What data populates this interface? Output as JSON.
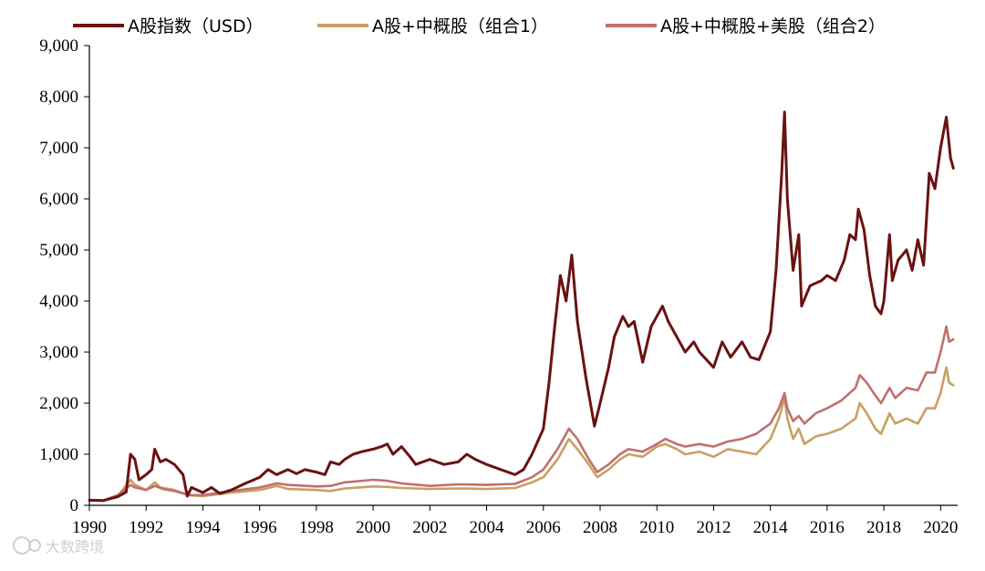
{
  "chart_data": {
    "type": "line",
    "title": "",
    "xlabel": "",
    "ylabel": "",
    "xlim": [
      1990,
      2020.6
    ],
    "ylim": [
      0,
      9000
    ],
    "x_ticks": [
      1990,
      1992,
      1994,
      1996,
      1998,
      2000,
      2002,
      2004,
      2006,
      2008,
      2010,
      2012,
      2014,
      2016,
      2018,
      2020
    ],
    "y_ticks": [
      0,
      1000,
      2000,
      3000,
      4000,
      5000,
      6000,
      7000,
      8000,
      9000
    ],
    "y_tick_labels": [
      "0",
      "1,000",
      "2,000",
      "3,000",
      "4,000",
      "5,000",
      "6,000",
      "7,000",
      "8,000",
      "9,000"
    ],
    "grid": false,
    "legend_position": "top",
    "series": [
      {
        "name": "A股指数（USD）",
        "color": "#6b1212",
        "points": [
          [
            1990,
            100
          ],
          [
            1990.5,
            95
          ],
          [
            1991,
            170
          ],
          [
            1991.3,
            260
          ],
          [
            1991.45,
            1000
          ],
          [
            1991.6,
            900
          ],
          [
            1991.75,
            500
          ],
          [
            1992,
            600
          ],
          [
            1992.2,
            700
          ],
          [
            1992.3,
            1100
          ],
          [
            1992.5,
            850
          ],
          [
            1992.7,
            900
          ],
          [
            1993.0,
            800
          ],
          [
            1993.3,
            600
          ],
          [
            1993.45,
            180
          ],
          [
            1993.6,
            350
          ],
          [
            1993.8,
            300
          ],
          [
            1994,
            250
          ],
          [
            1994.3,
            350
          ],
          [
            1994.6,
            230
          ],
          [
            1995,
            300
          ],
          [
            1995.5,
            430
          ],
          [
            1995.8,
            500
          ],
          [
            1996,
            550
          ],
          [
            1996.3,
            700
          ],
          [
            1996.6,
            600
          ],
          [
            1997,
            700
          ],
          [
            1997.3,
            620
          ],
          [
            1997.6,
            700
          ],
          [
            1998,
            650
          ],
          [
            1998.3,
            600
          ],
          [
            1998.5,
            850
          ],
          [
            1998.8,
            800
          ],
          [
            1999,
            900
          ],
          [
            1999.3,
            1000
          ],
          [
            1999.6,
            1050
          ],
          [
            2000,
            1100
          ],
          [
            2000.3,
            1150
          ],
          [
            2000.5,
            1200
          ],
          [
            2000.7,
            1000
          ],
          [
            2001,
            1150
          ],
          [
            2001.3,
            950
          ],
          [
            2001.5,
            800
          ],
          [
            2002,
            900
          ],
          [
            2002.5,
            800
          ],
          [
            2003,
            850
          ],
          [
            2003.3,
            1000
          ],
          [
            2003.6,
            900
          ],
          [
            2004,
            800
          ],
          [
            2004.5,
            700
          ],
          [
            2005,
            600
          ],
          [
            2005.3,
            700
          ],
          [
            2005.6,
            1000
          ],
          [
            2006,
            1500
          ],
          [
            2006.2,
            2400
          ],
          [
            2006.4,
            3500
          ],
          [
            2006.6,
            4500
          ],
          [
            2006.8,
            4000
          ],
          [
            2007,
            4900
          ],
          [
            2007.2,
            3600
          ],
          [
            2007.5,
            2500
          ],
          [
            2007.8,
            1550
          ],
          [
            2008,
            2000
          ],
          [
            2008.3,
            2700
          ],
          [
            2008.5,
            3300
          ],
          [
            2008.8,
            3700
          ],
          [
            2009,
            3500
          ],
          [
            2009.2,
            3600
          ],
          [
            2009.5,
            2800
          ],
          [
            2009.8,
            3500
          ],
          [
            2010,
            3700
          ],
          [
            2010.2,
            3900
          ],
          [
            2010.4,
            3600
          ],
          [
            2010.6,
            3400
          ],
          [
            2011,
            3000
          ],
          [
            2011.3,
            3200
          ],
          [
            2011.5,
            3000
          ],
          [
            2012,
            2700
          ],
          [
            2012.3,
            3200
          ],
          [
            2012.6,
            2900
          ],
          [
            2013,
            3200
          ],
          [
            2013.3,
            2900
          ],
          [
            2013.6,
            2850
          ],
          [
            2014,
            3400
          ],
          [
            2014.2,
            4600
          ],
          [
            2014.4,
            6500
          ],
          [
            2014.5,
            7700
          ],
          [
            2014.6,
            6000
          ],
          [
            2014.8,
            4600
          ],
          [
            2015,
            5300
          ],
          [
            2015.1,
            3900
          ],
          [
            2015.4,
            4300
          ],
          [
            2015.8,
            4400
          ],
          [
            2016,
            4500
          ],
          [
            2016.3,
            4400
          ],
          [
            2016.6,
            4800
          ],
          [
            2016.8,
            5300
          ],
          [
            2017,
            5200
          ],
          [
            2017.1,
            5800
          ],
          [
            2017.3,
            5400
          ],
          [
            2017.5,
            4500
          ],
          [
            2017.7,
            3900
          ],
          [
            2017.9,
            3750
          ],
          [
            2018,
            4000
          ],
          [
            2018.2,
            5300
          ],
          [
            2018.3,
            4400
          ],
          [
            2018.5,
            4800
          ],
          [
            2018.8,
            5000
          ],
          [
            2019,
            4600
          ],
          [
            2019.2,
            5200
          ],
          [
            2019.4,
            4700
          ],
          [
            2019.6,
            6500
          ],
          [
            2019.8,
            6200
          ],
          [
            2020,
            7000
          ],
          [
            2020.2,
            7600
          ],
          [
            2020.35,
            6800
          ],
          [
            2020.45,
            6600
          ]
        ]
      },
      {
        "name": "A股+中概股（组合1）",
        "color": "#c9a062",
        "points": [
          [
            1990,
            100
          ],
          [
            1990.5,
            90
          ],
          [
            1991,
            180
          ],
          [
            1991.45,
            500
          ],
          [
            1991.6,
            400
          ],
          [
            1992,
            300
          ],
          [
            1992.3,
            450
          ],
          [
            1992.5,
            350
          ],
          [
            1993,
            300
          ],
          [
            1993.5,
            200
          ],
          [
            1994,
            180
          ],
          [
            1995,
            250
          ],
          [
            1996,
            300
          ],
          [
            1996.6,
            380
          ],
          [
            1997,
            320
          ],
          [
            1998,
            300
          ],
          [
            1998.5,
            280
          ],
          [
            1999,
            330
          ],
          [
            2000,
            370
          ],
          [
            2000.5,
            360
          ],
          [
            2001,
            340
          ],
          [
            2002,
            320
          ],
          [
            2003,
            330
          ],
          [
            2004,
            320
          ],
          [
            2005,
            340
          ],
          [
            2005.6,
            450
          ],
          [
            2006,
            550
          ],
          [
            2006.5,
            900
          ],
          [
            2006.9,
            1300
          ],
          [
            2007.2,
            1100
          ],
          [
            2007.6,
            800
          ],
          [
            2007.9,
            550
          ],
          [
            2008.3,
            700
          ],
          [
            2008.7,
            900
          ],
          [
            2009,
            1000
          ],
          [
            2009.5,
            950
          ],
          [
            2010,
            1150
          ],
          [
            2010.3,
            1200
          ],
          [
            2010.7,
            1100
          ],
          [
            2011,
            1000
          ],
          [
            2011.5,
            1050
          ],
          [
            2012,
            950
          ],
          [
            2012.5,
            1100
          ],
          [
            2013,
            1050
          ],
          [
            2013.5,
            1000
          ],
          [
            2014,
            1300
          ],
          [
            2014.3,
            1700
          ],
          [
            2014.5,
            2100
          ],
          [
            2014.6,
            1700
          ],
          [
            2014.8,
            1300
          ],
          [
            2015,
            1500
          ],
          [
            2015.2,
            1200
          ],
          [
            2015.6,
            1350
          ],
          [
            2016,
            1400
          ],
          [
            2016.5,
            1500
          ],
          [
            2017,
            1700
          ],
          [
            2017.15,
            2000
          ],
          [
            2017.4,
            1800
          ],
          [
            2017.7,
            1500
          ],
          [
            2017.9,
            1400
          ],
          [
            2018.2,
            1800
          ],
          [
            2018.4,
            1600
          ],
          [
            2018.8,
            1700
          ],
          [
            2019.2,
            1600
          ],
          [
            2019.5,
            1900
          ],
          [
            2019.8,
            1900
          ],
          [
            2020,
            2200
          ],
          [
            2020.2,
            2700
          ],
          [
            2020.3,
            2400
          ],
          [
            2020.45,
            2350
          ]
        ]
      },
      {
        "name": "A股+中概股+美股（组合2）",
        "color": "#c07070",
        "points": [
          [
            1990,
            100
          ],
          [
            1990.5,
            95
          ],
          [
            1991,
            200
          ],
          [
            1991.45,
            400
          ],
          [
            1991.6,
            350
          ],
          [
            1992,
            300
          ],
          [
            1992.3,
            380
          ],
          [
            1992.6,
            320
          ],
          [
            1993,
            280
          ],
          [
            1993.5,
            200
          ],
          [
            1994,
            200
          ],
          [
            1995,
            280
          ],
          [
            1996,
            350
          ],
          [
            1996.6,
            430
          ],
          [
            1997,
            400
          ],
          [
            1998,
            370
          ],
          [
            1998.5,
            380
          ],
          [
            1999,
            450
          ],
          [
            2000,
            500
          ],
          [
            2000.5,
            480
          ],
          [
            2001,
            430
          ],
          [
            2002,
            380
          ],
          [
            2003,
            410
          ],
          [
            2004,
            400
          ],
          [
            2005,
            420
          ],
          [
            2005.6,
            550
          ],
          [
            2006,
            700
          ],
          [
            2006.5,
            1100
          ],
          [
            2006.9,
            1500
          ],
          [
            2007.2,
            1300
          ],
          [
            2007.6,
            900
          ],
          [
            2007.9,
            650
          ],
          [
            2008.3,
            800
          ],
          [
            2008.7,
            1000
          ],
          [
            2009,
            1100
          ],
          [
            2009.5,
            1050
          ],
          [
            2010,
            1200
          ],
          [
            2010.3,
            1300
          ],
          [
            2010.7,
            1200
          ],
          [
            2011,
            1150
          ],
          [
            2011.5,
            1200
          ],
          [
            2012,
            1150
          ],
          [
            2012.5,
            1250
          ],
          [
            2013,
            1300
          ],
          [
            2013.5,
            1400
          ],
          [
            2014,
            1600
          ],
          [
            2014.3,
            1900
          ],
          [
            2014.5,
            2200
          ],
          [
            2014.6,
            1900
          ],
          [
            2014.8,
            1650
          ],
          [
            2015,
            1750
          ],
          [
            2015.2,
            1600
          ],
          [
            2015.6,
            1800
          ],
          [
            2016,
            1900
          ],
          [
            2016.5,
            2050
          ],
          [
            2017,
            2300
          ],
          [
            2017.15,
            2550
          ],
          [
            2017.4,
            2400
          ],
          [
            2017.7,
            2150
          ],
          [
            2017.9,
            2000
          ],
          [
            2018.2,
            2300
          ],
          [
            2018.4,
            2100
          ],
          [
            2018.8,
            2300
          ],
          [
            2019.2,
            2250
          ],
          [
            2019.5,
            2600
          ],
          [
            2019.8,
            2600
          ],
          [
            2020,
            3000
          ],
          [
            2020.2,
            3500
          ],
          [
            2020.3,
            3200
          ],
          [
            2020.45,
            3250
          ]
        ]
      }
    ]
  },
  "legend": {
    "items": [
      {
        "label": "A股指数（USD）",
        "color": "#6b1212"
      },
      {
        "label": "A股+中概股（组合1）",
        "color": "#c9a062"
      },
      {
        "label": "A股+中概股+美股（组合2）",
        "color": "#c07070"
      }
    ]
  },
  "watermark": {
    "text": "大数跨境"
  }
}
